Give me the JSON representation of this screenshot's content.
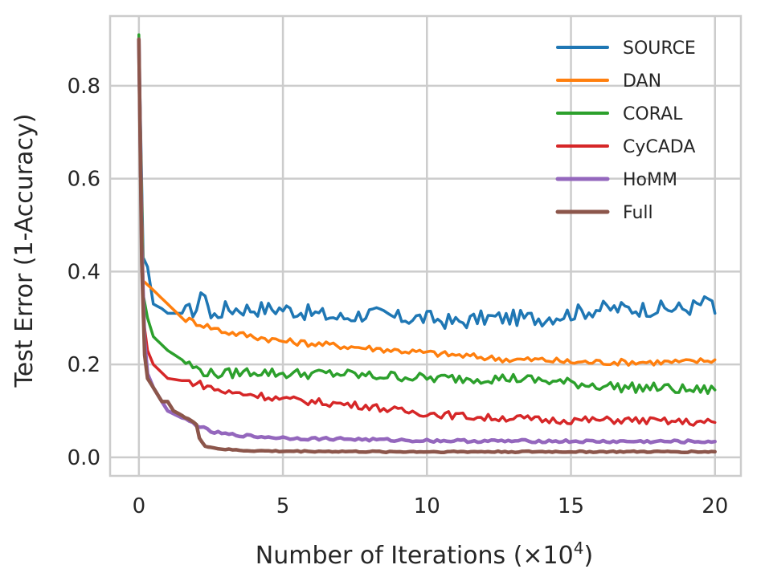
{
  "chart_data": {
    "type": "line",
    "title": "",
    "xlabel": "Number of Iterations (×10",
    "xlabel_exponent": "4",
    "xlabel_suffix": ")",
    "ylabel": "Test Error (1-Accuracy)",
    "xlim": [
      -1,
      20.9
    ],
    "ylim": [
      -0.04,
      0.95
    ],
    "xticks": [
      0,
      5,
      10,
      15,
      20
    ],
    "xtick_labels": [
      "0",
      "5",
      "10",
      "15",
      "20"
    ],
    "yticks": [
      0.0,
      0.2,
      0.4,
      0.6,
      0.8
    ],
    "ytick_labels": [
      "0.0",
      "0.2",
      "0.4",
      "0.6",
      "0.8"
    ],
    "grid": true,
    "legend_position": "top-right",
    "series": [
      {
        "name": "SOURCE",
        "color": "#1f77b4",
        "points": [
          [
            0,
            0.9
          ],
          [
            0.15,
            0.43
          ],
          [
            0.3,
            0.41
          ],
          [
            0.5,
            0.33
          ],
          [
            0.8,
            0.32
          ],
          [
            1,
            0.31
          ],
          [
            1.5,
            0.31
          ],
          [
            2,
            0.32
          ],
          [
            2.3,
            0.36
          ],
          [
            2.5,
            0.3
          ],
          [
            3,
            0.32
          ],
          [
            4,
            0.32
          ],
          [
            5,
            0.32
          ],
          [
            6,
            0.31
          ],
          [
            7,
            0.3
          ],
          [
            8,
            0.31
          ],
          [
            9,
            0.3
          ],
          [
            10,
            0.3
          ],
          [
            11,
            0.29
          ],
          [
            12,
            0.3
          ],
          [
            13,
            0.3
          ],
          [
            14,
            0.3
          ],
          [
            15,
            0.31
          ],
          [
            16,
            0.32
          ],
          [
            17,
            0.32
          ],
          [
            18,
            0.32
          ],
          [
            19,
            0.32
          ],
          [
            19.5,
            0.33
          ],
          [
            19.9,
            0.34
          ],
          [
            20,
            0.31
          ]
        ]
      },
      {
        "name": "DAN",
        "color": "#ff7f0e",
        "points": [
          [
            0,
            0.9
          ],
          [
            0.15,
            0.38
          ],
          [
            0.5,
            0.36
          ],
          [
            1,
            0.33
          ],
          [
            1.5,
            0.3
          ],
          [
            2,
            0.29
          ],
          [
            3,
            0.27
          ],
          [
            4,
            0.26
          ],
          [
            5,
            0.25
          ],
          [
            6,
            0.245
          ],
          [
            7,
            0.24
          ],
          [
            8,
            0.235
          ],
          [
            9,
            0.23
          ],
          [
            10,
            0.225
          ],
          [
            11,
            0.22
          ],
          [
            12,
            0.215
          ],
          [
            13,
            0.21
          ],
          [
            14,
            0.21
          ],
          [
            15,
            0.205
          ],
          [
            16,
            0.205
          ],
          [
            17,
            0.205
          ],
          [
            18,
            0.205
          ],
          [
            19,
            0.205
          ],
          [
            20,
            0.21
          ]
        ]
      },
      {
        "name": "CORAL",
        "color": "#2ca02c",
        "points": [
          [
            0,
            0.91
          ],
          [
            0.15,
            0.35
          ],
          [
            0.3,
            0.3
          ],
          [
            0.5,
            0.26
          ],
          [
            1,
            0.23
          ],
          [
            1.5,
            0.21
          ],
          [
            2,
            0.19
          ],
          [
            2.5,
            0.18
          ],
          [
            3,
            0.18
          ],
          [
            4,
            0.185
          ],
          [
            5,
            0.18
          ],
          [
            6,
            0.18
          ],
          [
            7,
            0.18
          ],
          [
            8,
            0.175
          ],
          [
            9,
            0.175
          ],
          [
            10,
            0.17
          ],
          [
            11,
            0.17
          ],
          [
            12,
            0.17
          ],
          [
            13,
            0.17
          ],
          [
            14,
            0.165
          ],
          [
            15,
            0.16
          ],
          [
            16,
            0.155
          ],
          [
            17,
            0.15
          ],
          [
            18,
            0.15
          ],
          [
            19,
            0.145
          ],
          [
            20,
            0.145
          ]
        ]
      },
      {
        "name": "CyCADA",
        "color": "#d62728",
        "points": [
          [
            0,
            0.9
          ],
          [
            0.15,
            0.3
          ],
          [
            0.3,
            0.23
          ],
          [
            0.5,
            0.2
          ],
          [
            1,
            0.17
          ],
          [
            1.5,
            0.165
          ],
          [
            2,
            0.16
          ],
          [
            2.5,
            0.15
          ],
          [
            3,
            0.14
          ],
          [
            4,
            0.135
          ],
          [
            5,
            0.125
          ],
          [
            6,
            0.12
          ],
          [
            7,
            0.115
          ],
          [
            8,
            0.11
          ],
          [
            9,
            0.1
          ],
          [
            10,
            0.095
          ],
          [
            11,
            0.09
          ],
          [
            12,
            0.085
          ],
          [
            13,
            0.085
          ],
          [
            14,
            0.08
          ],
          [
            15,
            0.08
          ],
          [
            16,
            0.08
          ],
          [
            17,
            0.08
          ],
          [
            18,
            0.078
          ],
          [
            19,
            0.076
          ],
          [
            20,
            0.075
          ]
        ]
      },
      {
        "name": "HoMM",
        "color": "#9467bd",
        "points": [
          [
            0,
            0.9
          ],
          [
            0.1,
            0.45
          ],
          [
            0.2,
            0.25
          ],
          [
            0.3,
            0.18
          ],
          [
            0.5,
            0.15
          ],
          [
            0.8,
            0.12
          ],
          [
            1,
            0.1
          ],
          [
            1.5,
            0.085
          ],
          [
            2,
            0.07
          ],
          [
            2.5,
            0.055
          ],
          [
            3,
            0.05
          ],
          [
            4,
            0.045
          ],
          [
            5,
            0.042
          ],
          [
            6,
            0.04
          ],
          [
            7,
            0.04
          ],
          [
            8,
            0.038
          ],
          [
            9,
            0.037
          ],
          [
            10,
            0.036
          ],
          [
            12,
            0.035
          ],
          [
            14,
            0.035
          ],
          [
            16,
            0.034
          ],
          [
            18,
            0.034
          ],
          [
            20,
            0.034
          ]
        ]
      },
      {
        "name": "Full",
        "color": "#8c564b",
        "points": [
          [
            0,
            0.9
          ],
          [
            0.1,
            0.42
          ],
          [
            0.2,
            0.22
          ],
          [
            0.3,
            0.17
          ],
          [
            0.5,
            0.15
          ],
          [
            0.8,
            0.12
          ],
          [
            1,
            0.12
          ],
          [
            1.2,
            0.1
          ],
          [
            1.5,
            0.09
          ],
          [
            1.8,
            0.08
          ],
          [
            2,
            0.07
          ],
          [
            2.1,
            0.04
          ],
          [
            2.3,
            0.025
          ],
          [
            2.6,
            0.02
          ],
          [
            3,
            0.017
          ],
          [
            3.5,
            0.015
          ],
          [
            4,
            0.014
          ],
          [
            5,
            0.013
          ],
          [
            6,
            0.013
          ],
          [
            8,
            0.012
          ],
          [
            10,
            0.012
          ],
          [
            12,
            0.012
          ],
          [
            14,
            0.012
          ],
          [
            16,
            0.012
          ],
          [
            18,
            0.012
          ],
          [
            20,
            0.012
          ]
        ]
      }
    ]
  }
}
